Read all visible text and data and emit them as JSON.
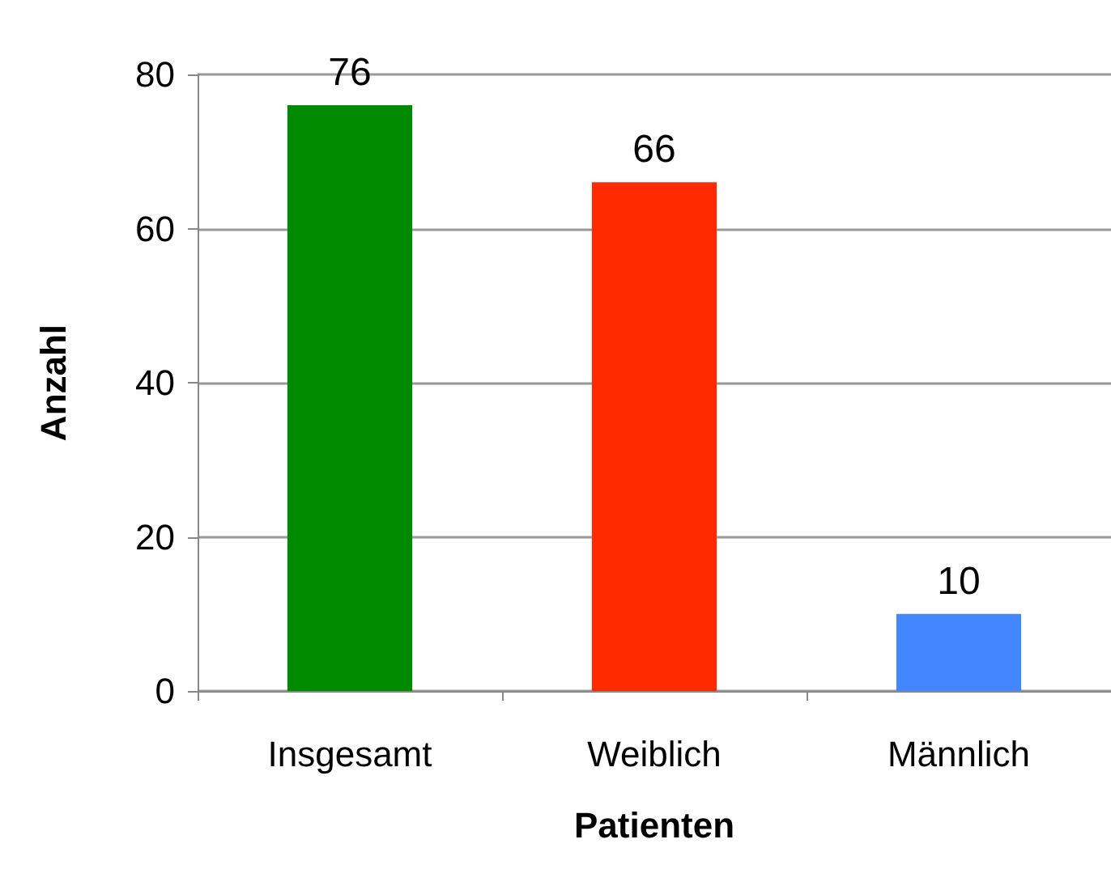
{
  "chart_data": {
    "type": "bar",
    "xlabel": "Patienten",
    "ylabel": "Anzahl",
    "categories": [
      "Insgesamt",
      "Weiblich",
      "Männlich"
    ],
    "values": [
      76,
      66,
      10
    ],
    "colors": [
      "#008a00",
      "#ff2a00",
      "#4287ff"
    ],
    "ylim": [
      0,
      80
    ],
    "yticks": [
      0,
      20,
      40,
      60,
      80
    ],
    "grid": "y",
    "data_labels": true
  }
}
